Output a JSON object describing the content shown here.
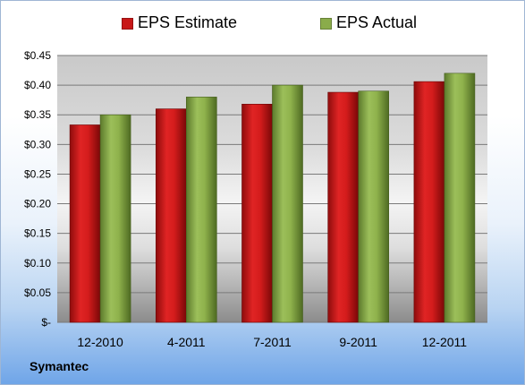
{
  "chart_data": {
    "type": "bar",
    "title": "",
    "xlabel": "",
    "ylabel": "",
    "categories": [
      "12-2010",
      "4-2011",
      "7-2011",
      "9-2011",
      "12-2011"
    ],
    "series": [
      {
        "name": "EPS Estimate",
        "color": "#c81818",
        "values": [
          0.333,
          0.36,
          0.368,
          0.388,
          0.406
        ]
      },
      {
        "name": "EPS Actual",
        "color": "#8aac4a",
        "values": [
          0.35,
          0.38,
          0.4,
          0.39,
          0.42
        ]
      }
    ],
    "ylim": [
      0,
      0.45
    ],
    "yticks": [
      0,
      0.05,
      0.1,
      0.15,
      0.2,
      0.25,
      0.3,
      0.35,
      0.4,
      0.45
    ],
    "ytick_labels": [
      "$-",
      "$0.05",
      "$0.10",
      "$0.15",
      "$0.20",
      "$0.25",
      "$0.30",
      "$0.35",
      "$0.40",
      "$0.45"
    ],
    "grid": true,
    "legend_position": "top"
  },
  "company_label": "Symantec"
}
